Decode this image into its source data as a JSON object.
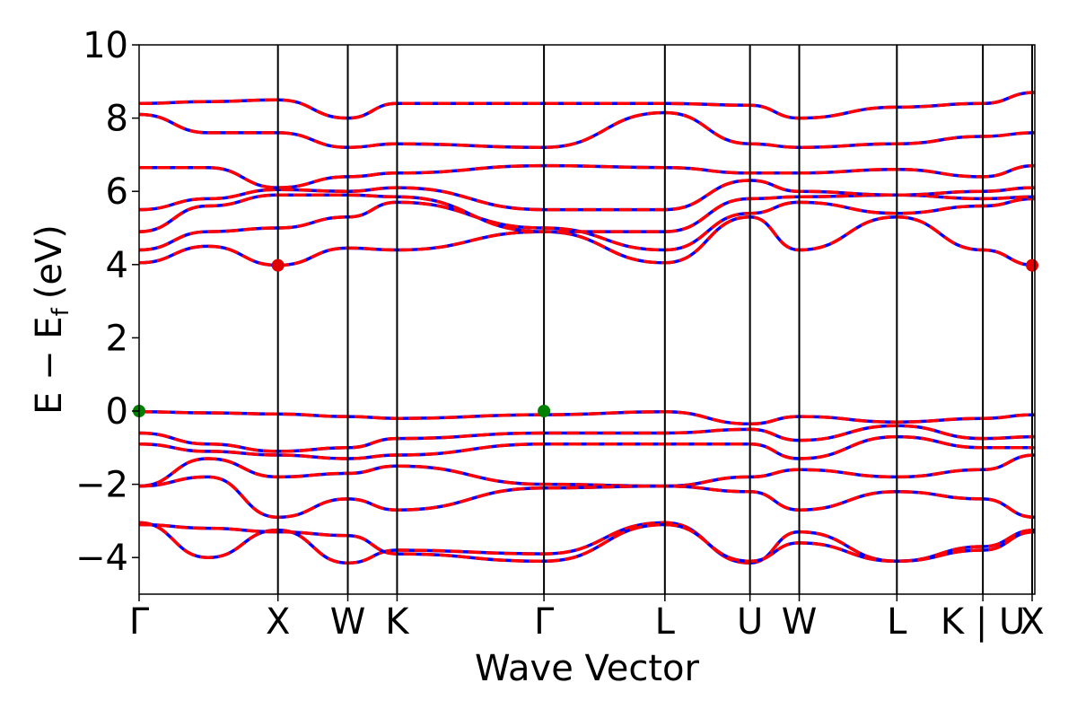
{
  "chart_data": {
    "type": "line",
    "title": "",
    "xlabel": "Wave Vector",
    "ylabel": "E − E",
    "ylabel_subscript": "f",
    "ylabel_unit": "(eV)",
    "xlim": [
      0,
      1
    ],
    "ylim": [
      -5,
      10
    ],
    "yticks": [
      -4,
      -2,
      0,
      2,
      4,
      6,
      8,
      10
    ],
    "ytick_labels": [
      "−4",
      "−2",
      "0",
      "2",
      "4",
      "6",
      "8",
      "10"
    ],
    "kpoints": [
      {
        "label": "Γ",
        "x": 0.0
      },
      {
        "label": "X",
        "x": 0.155
      },
      {
        "label": "W",
        "x": 0.233
      },
      {
        "label": "K",
        "x": 0.288
      },
      {
        "label": "Γ",
        "x": 0.452
      },
      {
        "label": "L",
        "x": 0.587
      },
      {
        "label": "U",
        "x": 0.682
      },
      {
        "label": "W",
        "x": 0.737
      },
      {
        "label": "L",
        "x": 0.846
      },
      {
        "label": "K | U",
        "x": 0.942
      },
      {
        "label": "X",
        "x": 0.997
      }
    ],
    "segment_ends": [
      0.155,
      0.233,
      0.288,
      0.452,
      0.587,
      0.682,
      0.737,
      0.846,
      0.942,
      1.0
    ],
    "conduction_bands": [
      [
        4.05,
        4.5,
        3.98,
        4.45,
        4.4,
        4.9,
        4.05,
        5.3,
        4.4,
        5.3,
        4.4,
        3.98
      ],
      [
        4.4,
        4.9,
        5.0,
        5.3,
        5.7,
        5.0,
        4.4,
        5.4,
        5.7,
        5.4,
        5.6,
        5.8
      ],
      [
        4.9,
        5.6,
        5.9,
        5.9,
        5.85,
        4.9,
        4.9,
        5.8,
        5.85,
        5.9,
        5.8,
        5.85
      ],
      [
        5.5,
        5.8,
        6.05,
        6.0,
        6.1,
        5.5,
        5.5,
        6.3,
        6.0,
        5.9,
        6.0,
        6.1
      ],
      [
        6.65,
        6.65,
        6.1,
        6.4,
        6.5,
        6.7,
        6.65,
        6.5,
        6.5,
        6.6,
        6.4,
        6.7
      ],
      [
        8.1,
        7.6,
        7.6,
        7.2,
        7.3,
        7.2,
        8.15,
        7.3,
        7.2,
        7.3,
        7.5,
        7.6
      ],
      [
        8.4,
        8.45,
        8.5,
        8.0,
        8.4,
        8.4,
        8.4,
        8.35,
        8.0,
        8.3,
        8.4,
        8.7
      ]
    ],
    "valence_bands": [
      [
        -0.02,
        -0.05,
        -0.08,
        -0.15,
        -0.2,
        -0.1,
        -0.02,
        -0.35,
        -0.15,
        -0.3,
        -0.2,
        -0.1
      ],
      [
        -0.6,
        -0.9,
        -1.1,
        -1.0,
        -0.75,
        -0.6,
        -0.6,
        -0.5,
        -0.8,
        -0.4,
        -0.75,
        -0.7
      ],
      [
        -0.9,
        -1.1,
        -1.2,
        -1.3,
        -1.2,
        -0.9,
        -0.9,
        -0.9,
        -1.3,
        -0.7,
        -1.0,
        -1.0
      ],
      [
        -2.05,
        -1.3,
        -1.8,
        -1.7,
        -1.5,
        -2.0,
        -2.05,
        -1.8,
        -1.6,
        -1.8,
        -1.6,
        -1.2
      ],
      [
        -2.05,
        -1.8,
        -2.9,
        -2.4,
        -2.7,
        -2.1,
        -2.05,
        -2.2,
        -2.7,
        -2.2,
        -2.4,
        -2.9
      ],
      [
        -3.05,
        -4.0,
        -3.25,
        -4.15,
        -3.8,
        -3.9,
        -3.05,
        -4.15,
        -3.3,
        -4.1,
        -3.7,
        -3.25
      ],
      [
        -3.1,
        -3.2,
        -3.3,
        -3.4,
        -3.9,
        -4.1,
        -3.1,
        -4.1,
        -3.6,
        -4.1,
        -3.8,
        -3.3
      ]
    ],
    "markers": [
      {
        "x": 0.0,
        "y": 0.0,
        "color": "#008000"
      },
      {
        "x": 0.452,
        "y": 0.0,
        "color": "#008000"
      },
      {
        "x": 0.155,
        "y": 3.98,
        "color": "#e00000"
      },
      {
        "x": 0.997,
        "y": 3.98,
        "color": "#e00000"
      }
    ],
    "series": [
      {
        "color": "#0000ff",
        "style": "solid"
      },
      {
        "color": "#ff0000",
        "style": "dashed"
      }
    ],
    "grid": false,
    "legend": "none"
  }
}
